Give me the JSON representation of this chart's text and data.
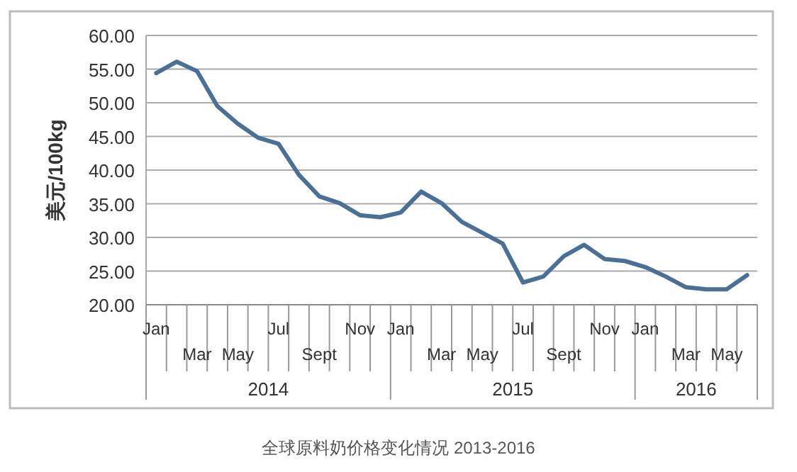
{
  "chart_data": {
    "type": "line",
    "title": "全球原料奶价格变化情况 2013-2016",
    "ylabel": "美元/100kg",
    "categories": [
      "Jan",
      null,
      "Mar",
      null,
      "May",
      null,
      "Jul",
      null,
      "Sept",
      null,
      "Nov",
      null,
      "Jan",
      null,
      "Mar",
      null,
      "May",
      null,
      "Jul",
      null,
      "Sept",
      null,
      "Nov",
      null,
      "Jan",
      null,
      "Mar",
      null,
      "May",
      null
    ],
    "values": [
      54.4,
      56.1,
      54.7,
      49.5,
      46.9,
      44.8,
      43.9,
      39.3,
      36.1,
      35.1,
      33.3,
      33.0,
      33.7,
      36.8,
      35.1,
      32.3,
      30.7,
      29.1,
      23.3,
      24.2,
      27.2,
      28.9,
      26.8,
      26.5,
      25.6,
      24.2,
      22.6,
      22.3,
      22.3,
      24.4
    ],
    "color": "#4a7098",
    "ylim": [
      20,
      60
    ],
    "yticks": [
      {
        "value": 20,
        "label": "20.00"
      },
      {
        "value": 25,
        "label": "25.00"
      },
      {
        "value": 30,
        "label": "30.00"
      },
      {
        "value": 35,
        "label": "35.00"
      },
      {
        "value": 40,
        "label": "40.00"
      },
      {
        "value": 45,
        "label": "45.00"
      },
      {
        "value": 50,
        "label": "50.00"
      },
      {
        "value": 55,
        "label": "55.00"
      },
      {
        "value": 60,
        "label": "60.00"
      }
    ],
    "grid": "y",
    "annotations": [
      "2014",
      "2015",
      "2016"
    ]
  }
}
